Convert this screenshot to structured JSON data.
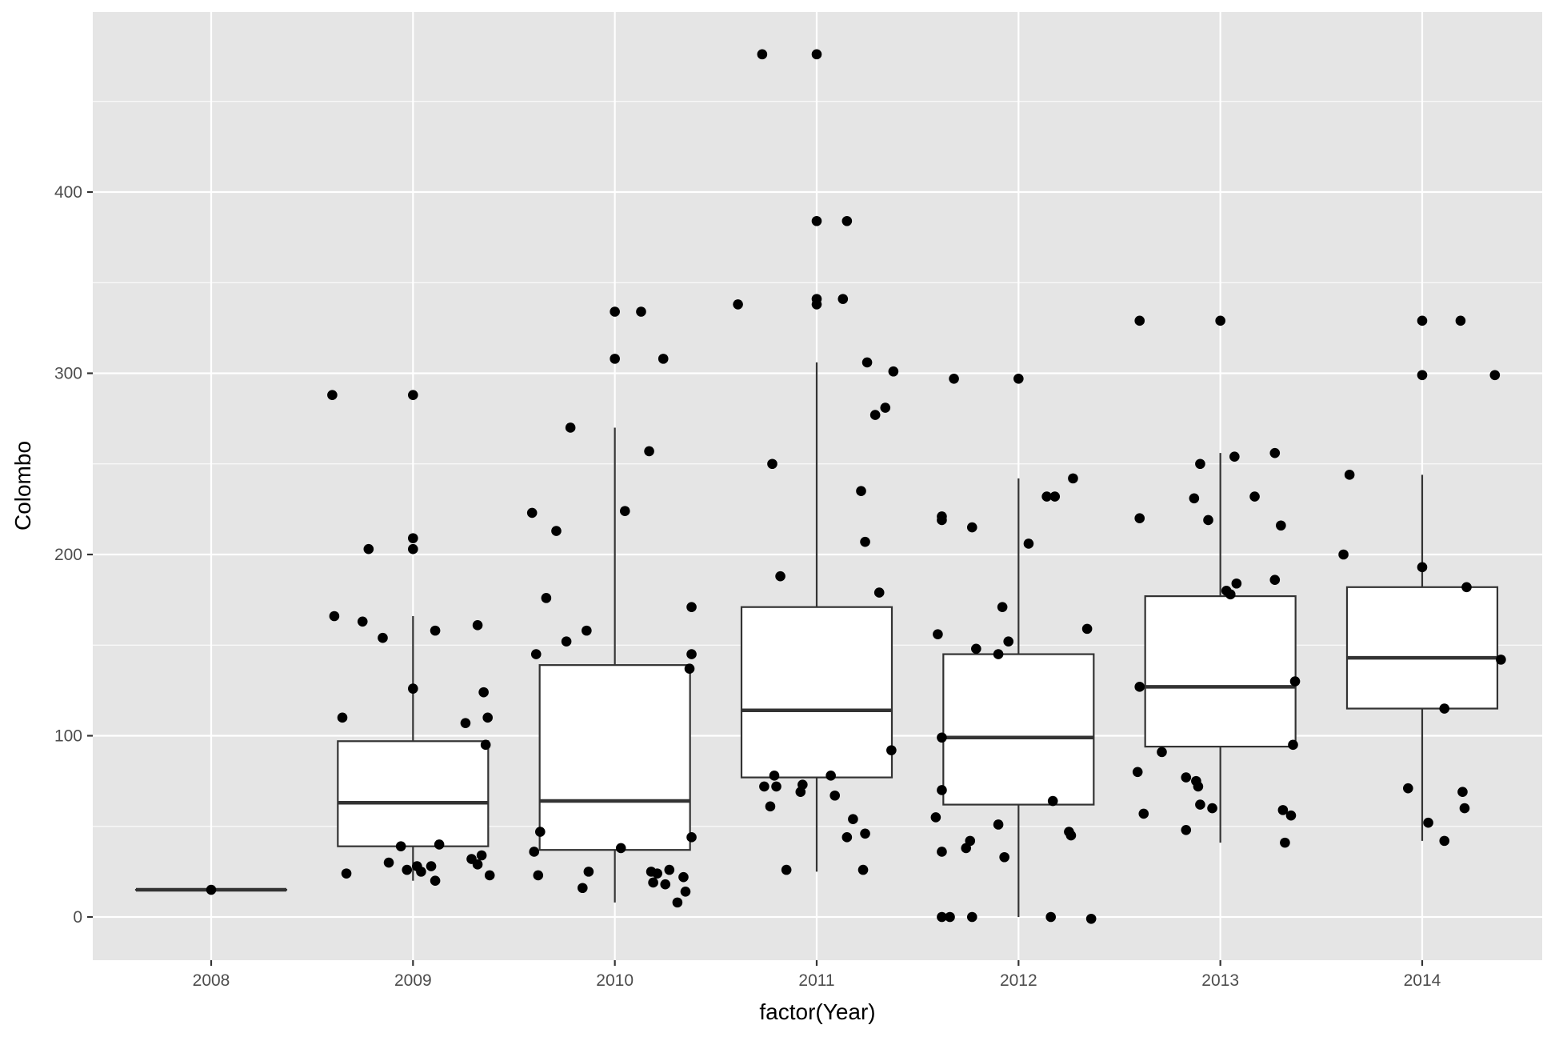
{
  "chart_data": {
    "type": "box",
    "xlabel": "factor(Year)",
    "ylabel": "Colombo",
    "ylim": [
      -25,
      500
    ],
    "categories": [
      "2008",
      "2009",
      "2010",
      "2011",
      "2012",
      "2013",
      "2014"
    ],
    "y_ticks": [
      0,
      100,
      200,
      300,
      400
    ],
    "grid": true,
    "colors": {
      "panel": "#e5e5e5",
      "grid": "#ffffff",
      "box_fill": "#ffffff",
      "box_line": "#333333",
      "point": "#000000",
      "text": "#4d4d4d"
    },
    "boxes": [
      {
        "category": "2008",
        "whisker_low": 15,
        "q1": 15,
        "median": 15,
        "q3": 15,
        "whisker_high": 15
      },
      {
        "category": "2009",
        "whisker_low": 20,
        "q1": 39,
        "median": 63,
        "q3": 97,
        "whisker_high": 166
      },
      {
        "category": "2010",
        "whisker_low": 8,
        "q1": 37,
        "median": 64,
        "q3": 139,
        "whisker_high": 270
      },
      {
        "category": "2011",
        "whisker_low": 25,
        "q1": 77,
        "median": 114,
        "q3": 171,
        "whisker_high": 306
      },
      {
        "category": "2012",
        "whisker_low": 0,
        "q1": 62,
        "median": 99,
        "q3": 145,
        "whisker_high": 242
      },
      {
        "category": "2013",
        "whisker_low": 41,
        "q1": 94,
        "median": 127,
        "q3": 177,
        "whisker_high": 256
      },
      {
        "category": "2014",
        "whisker_low": 42,
        "q1": 115,
        "median": 143,
        "q3": 182,
        "whisker_high": 244
      }
    ],
    "points": [
      {
        "x": 2008.0,
        "y": 15
      },
      {
        "x": 2008.6,
        "y": 288
      },
      {
        "x": 2009.0,
        "y": 288
      },
      {
        "x": 2009.0,
        "y": 209
      },
      {
        "x": 2009.0,
        "y": 203
      },
      {
        "x": 2008.78,
        "y": 203
      },
      {
        "x": 2008.61,
        "y": 166
      },
      {
        "x": 2008.75,
        "y": 163
      },
      {
        "x": 2009.11,
        "y": 158
      },
      {
        "x": 2009.32,
        "y": 161
      },
      {
        "x": 2008.85,
        "y": 154
      },
      {
        "x": 2009.0,
        "y": 126
      },
      {
        "x": 2009.35,
        "y": 124
      },
      {
        "x": 2008.65,
        "y": 110
      },
      {
        "x": 2009.37,
        "y": 110
      },
      {
        "x": 2009.26,
        "y": 107
      },
      {
        "x": 2009.36,
        "y": 95
      },
      {
        "x": 2008.94,
        "y": 39
      },
      {
        "x": 2009.13,
        "y": 40
      },
      {
        "x": 2008.88,
        "y": 30
      },
      {
        "x": 2009.29,
        "y": 32
      },
      {
        "x": 2009.34,
        "y": 34
      },
      {
        "x": 2008.97,
        "y": 26
      },
      {
        "x": 2009.02,
        "y": 28
      },
      {
        "x": 2009.09,
        "y": 28
      },
      {
        "x": 2009.32,
        "y": 29
      },
      {
        "x": 2009.04,
        "y": 25
      },
      {
        "x": 2008.67,
        "y": 24
      },
      {
        "x": 2009.38,
        "y": 23
      },
      {
        "x": 2009.11,
        "y": 20
      },
      {
        "x": 2010.0,
        "y": 334
      },
      {
        "x": 2010.13,
        "y": 334
      },
      {
        "x": 2010.0,
        "y": 308
      },
      {
        "x": 2010.24,
        "y": 308
      },
      {
        "x": 2009.78,
        "y": 270
      },
      {
        "x": 2010.17,
        "y": 257
      },
      {
        "x": 2009.59,
        "y": 223
      },
      {
        "x": 2010.05,
        "y": 224
      },
      {
        "x": 2009.71,
        "y": 213
      },
      {
        "x": 2009.66,
        "y": 176
      },
      {
        "x": 2010.38,
        "y": 171
      },
      {
        "x": 2009.86,
        "y": 158
      },
      {
        "x": 2009.76,
        "y": 152
      },
      {
        "x": 2009.61,
        "y": 145
      },
      {
        "x": 2010.38,
        "y": 145
      },
      {
        "x": 2010.37,
        "y": 137
      },
      {
        "x": 2009.63,
        "y": 47
      },
      {
        "x": 2010.38,
        "y": 44
      },
      {
        "x": 2010.03,
        "y": 38
      },
      {
        "x": 2009.6,
        "y": 36
      },
      {
        "x": 2009.87,
        "y": 25
      },
      {
        "x": 2009.62,
        "y": 23
      },
      {
        "x": 2010.18,
        "y": 25
      },
      {
        "x": 2010.21,
        "y": 24
      },
      {
        "x": 2010.27,
        "y": 26
      },
      {
        "x": 2010.34,
        "y": 22
      },
      {
        "x": 2010.19,
        "y": 19
      },
      {
        "x": 2010.25,
        "y": 18
      },
      {
        "x": 2009.84,
        "y": 16
      },
      {
        "x": 2010.35,
        "y": 14
      },
      {
        "x": 2010.31,
        "y": 8
      },
      {
        "x": 2010.73,
        "y": 476
      },
      {
        "x": 2011.0,
        "y": 476
      },
      {
        "x": 2011.0,
        "y": 384
      },
      {
        "x": 2011.15,
        "y": 384
      },
      {
        "x": 2011.0,
        "y": 341
      },
      {
        "x": 2011.13,
        "y": 341
      },
      {
        "x": 2010.61,
        "y": 338
      },
      {
        "x": 2011.0,
        "y": 338
      },
      {
        "x": 2011.25,
        "y": 306
      },
      {
        "x": 2011.38,
        "y": 301
      },
      {
        "x": 2011.34,
        "y": 281
      },
      {
        "x": 2011.29,
        "y": 277
      },
      {
        "x": 2010.78,
        "y": 250
      },
      {
        "x": 2011.22,
        "y": 235
      },
      {
        "x": 2011.24,
        "y": 207
      },
      {
        "x": 2010.82,
        "y": 188
      },
      {
        "x": 2011.31,
        "y": 179
      },
      {
        "x": 2011.37,
        "y": 92
      },
      {
        "x": 2010.79,
        "y": 78
      },
      {
        "x": 2011.07,
        "y": 78
      },
      {
        "x": 2010.74,
        "y": 72
      },
      {
        "x": 2010.8,
        "y": 72
      },
      {
        "x": 2010.93,
        "y": 73
      },
      {
        "x": 2010.92,
        "y": 69
      },
      {
        "x": 2011.09,
        "y": 67
      },
      {
        "x": 2010.77,
        "y": 61
      },
      {
        "x": 2011.18,
        "y": 54
      },
      {
        "x": 2011.15,
        "y": 44
      },
      {
        "x": 2011.24,
        "y": 46
      },
      {
        "x": 2010.85,
        "y": 26
      },
      {
        "x": 2011.23,
        "y": 26
      },
      {
        "x": 2011.68,
        "y": 297
      },
      {
        "x": 2012.0,
        "y": 297
      },
      {
        "x": 2012.27,
        "y": 242
      },
      {
        "x": 2012.14,
        "y": 232
      },
      {
        "x": 2012.18,
        "y": 232
      },
      {
        "x": 2011.62,
        "y": 221
      },
      {
        "x": 2011.62,
        "y": 219
      },
      {
        "x": 2011.77,
        "y": 215
      },
      {
        "x": 2012.05,
        "y": 206
      },
      {
        "x": 2011.92,
        "y": 171
      },
      {
        "x": 2012.34,
        "y": 159
      },
      {
        "x": 2011.6,
        "y": 156
      },
      {
        "x": 2011.95,
        "y": 152
      },
      {
        "x": 2011.79,
        "y": 148
      },
      {
        "x": 2011.9,
        "y": 145
      },
      {
        "x": 2011.62,
        "y": 99
      },
      {
        "x": 2011.62,
        "y": 70
      },
      {
        "x": 2012.17,
        "y": 64
      },
      {
        "x": 2011.59,
        "y": 55
      },
      {
        "x": 2011.9,
        "y": 51
      },
      {
        "x": 2012.25,
        "y": 47
      },
      {
        "x": 2012.26,
        "y": 45
      },
      {
        "x": 2011.76,
        "y": 42
      },
      {
        "x": 2011.74,
        "y": 38
      },
      {
        "x": 2011.62,
        "y": 36
      },
      {
        "x": 2011.93,
        "y": 33
      },
      {
        "x": 2011.62,
        "y": 0
      },
      {
        "x": 2011.66,
        "y": 0
      },
      {
        "x": 2011.77,
        "y": 0
      },
      {
        "x": 2012.16,
        "y": 0
      },
      {
        "x": 2012.36,
        "y": -1
      },
      {
        "x": 2012.6,
        "y": 329
      },
      {
        "x": 2013.0,
        "y": 329
      },
      {
        "x": 2013.27,
        "y": 256
      },
      {
        "x": 2013.07,
        "y": 254
      },
      {
        "x": 2012.9,
        "y": 250
      },
      {
        "x": 2013.17,
        "y": 232
      },
      {
        "x": 2012.87,
        "y": 231
      },
      {
        "x": 2012.6,
        "y": 220
      },
      {
        "x": 2012.94,
        "y": 219
      },
      {
        "x": 2013.3,
        "y": 216
      },
      {
        "x": 2013.27,
        "y": 186
      },
      {
        "x": 2013.08,
        "y": 184
      },
      {
        "x": 2013.03,
        "y": 180
      },
      {
        "x": 2013.05,
        "y": 178
      },
      {
        "x": 2013.37,
        "y": 130
      },
      {
        "x": 2012.6,
        "y": 127
      },
      {
        "x": 2013.36,
        "y": 95
      },
      {
        "x": 2012.71,
        "y": 91
      },
      {
        "x": 2012.59,
        "y": 80
      },
      {
        "x": 2012.83,
        "y": 77
      },
      {
        "x": 2012.88,
        "y": 75
      },
      {
        "x": 2012.89,
        "y": 72
      },
      {
        "x": 2012.9,
        "y": 62
      },
      {
        "x": 2012.96,
        "y": 60
      },
      {
        "x": 2013.31,
        "y": 59
      },
      {
        "x": 2012.62,
        "y": 57
      },
      {
        "x": 2013.35,
        "y": 56
      },
      {
        "x": 2012.83,
        "y": 48
      },
      {
        "x": 2013.32,
        "y": 41
      },
      {
        "x": 2014.0,
        "y": 329
      },
      {
        "x": 2014.19,
        "y": 329
      },
      {
        "x": 2014.0,
        "y": 299
      },
      {
        "x": 2014.36,
        "y": 299
      },
      {
        "x": 2013.64,
        "y": 244
      },
      {
        "x": 2013.61,
        "y": 200
      },
      {
        "x": 2014.0,
        "y": 193
      },
      {
        "x": 2014.22,
        "y": 182
      },
      {
        "x": 2014.39,
        "y": 142
      },
      {
        "x": 2014.11,
        "y": 115
      },
      {
        "x": 2013.93,
        "y": 71
      },
      {
        "x": 2014.2,
        "y": 69
      },
      {
        "x": 2014.21,
        "y": 60
      },
      {
        "x": 2014.03,
        "y": 52
      },
      {
        "x": 2014.11,
        "y": 42
      }
    ]
  }
}
